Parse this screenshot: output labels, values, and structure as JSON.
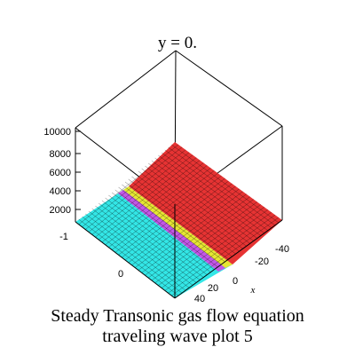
{
  "chart_data": {
    "type": "surface3d",
    "title": "y = 0.",
    "subtitle": "",
    "xlabel": "x",
    "ylabel": "",
    "zlabel": "",
    "x_ticks": [
      "-40",
      "-20",
      "0",
      "20",
      "40"
    ],
    "y_ticks": [
      "-1",
      "0"
    ],
    "z_ticks": [
      "10000",
      "8000",
      "6000",
      "4000",
      "2000"
    ],
    "xlim": [
      -40,
      40
    ],
    "zlim": [
      0,
      10000
    ],
    "grid": true,
    "surface_colors": {
      "low": "#33e6e6",
      "high": "#e63333",
      "transition": [
        "#e6e633",
        "#e633e6"
      ]
    },
    "caption_lines": [
      "Steady Transonic gas flow equation",
      "traveling wave plot 5"
    ]
  }
}
